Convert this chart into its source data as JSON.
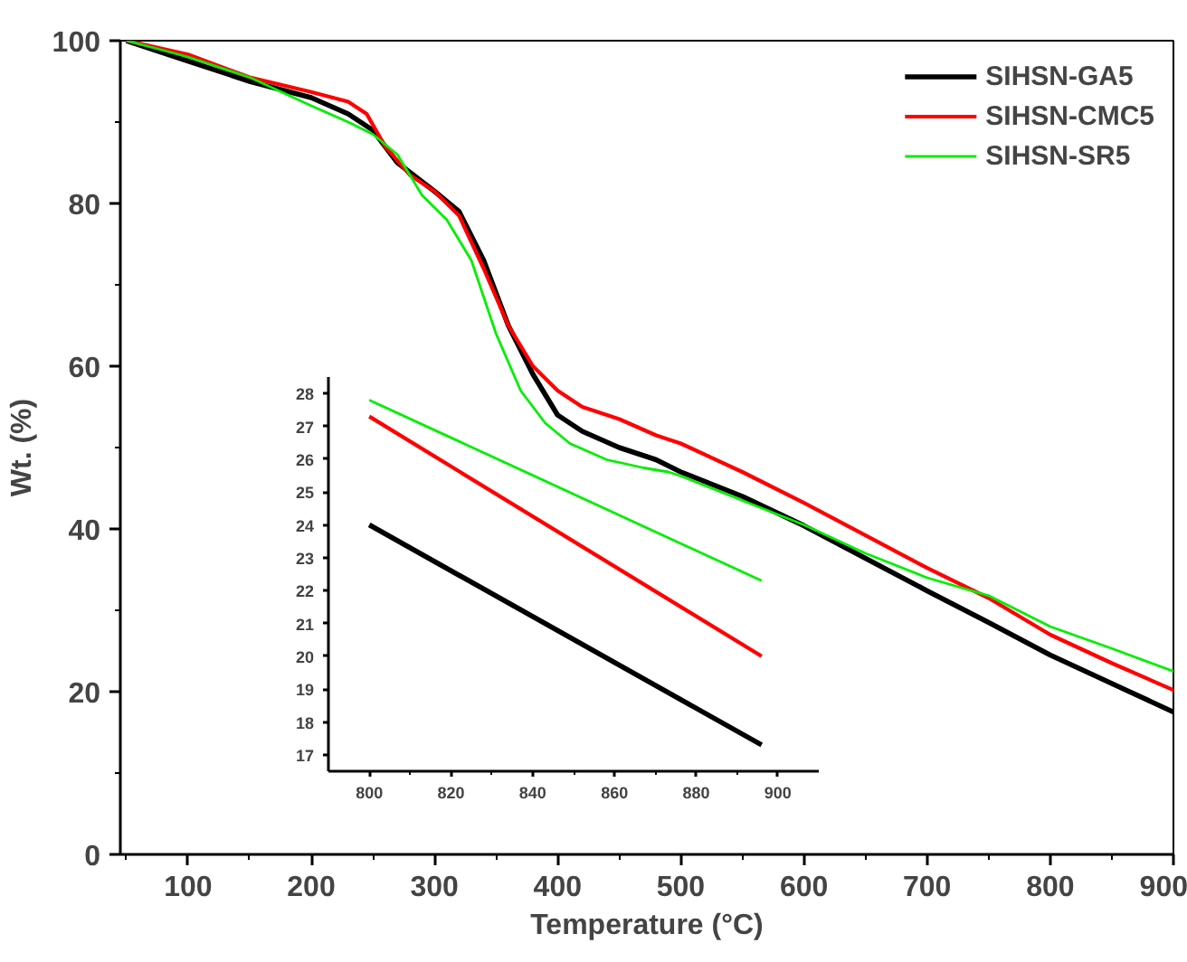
{
  "chart_data": [
    {
      "type": "line",
      "xlabel": "Temperature (°C)",
      "ylabel": "Wt. (%)",
      "legend": "top right",
      "grid": false,
      "line_style": "solid",
      "xlim": [
        45,
        900
      ],
      "ylim": [
        0,
        100
      ],
      "xticks": [
        {
          "value": 50,
          "label": null
        },
        100,
        {
          "value": 150,
          "label": null
        },
        200,
        {
          "value": 250,
          "label": null
        },
        300,
        {
          "value": 350,
          "label": null
        },
        400,
        {
          "value": 450,
          "label": null
        },
        500,
        {
          "value": 550,
          "label": null
        },
        600,
        {
          "value": 650,
          "label": null
        },
        700,
        {
          "value": 750,
          "label": null
        },
        800,
        {
          "value": 850,
          "label": null
        },
        900
      ],
      "yticks": [
        0,
        {
          "value": 10,
          "label": null
        },
        20,
        {
          "value": 30,
          "label": null
        },
        40,
        {
          "value": 50,
          "label": null
        },
        60,
        {
          "value": 70,
          "label": null
        },
        80,
        {
          "value": 90,
          "label": null
        },
        100
      ],
      "series": [
        {
          "name": "SIHSN-GA5",
          "color": "#000000",
          "x": [
            50,
            100,
            150,
            200,
            230,
            250,
            270,
            300,
            320,
            340,
            360,
            380,
            400,
            420,
            450,
            480,
            500,
            550,
            600,
            650,
            700,
            750,
            800,
            850,
            900
          ],
          "values": [
            100,
            97.5,
            95,
            93,
            91,
            89,
            85,
            81.5,
            79,
            73,
            65,
            59,
            54,
            52,
            50,
            48.5,
            47,
            44,
            40.4,
            36.4,
            32.4,
            28.5,
            24.5,
            21,
            17.5
          ]
        },
        {
          "name": "SIHSN-CMC5",
          "color": "#ff0000",
          "x": [
            50,
            100,
            150,
            200,
            230,
            245,
            260,
            280,
            300,
            320,
            340,
            360,
            380,
            400,
            420,
            450,
            480,
            500,
            550,
            600,
            650,
            700,
            750,
            800,
            850,
            900
          ],
          "values": [
            100,
            98.3,
            95.5,
            93.7,
            92.5,
            91,
            87,
            83.5,
            81.5,
            78.5,
            72,
            65,
            60,
            57,
            55,
            53.5,
            51.5,
            50.5,
            47,
            43.2,
            39.2,
            35.2,
            31.5,
            27,
            23.5,
            20.2
          ]
        },
        {
          "name": "SIHSN-SR5",
          "color": "#00ee00",
          "x": [
            50,
            100,
            150,
            200,
            230,
            250,
            270,
            290,
            310,
            330,
            350,
            370,
            390,
            410,
            440,
            470,
            490,
            500,
            550,
            600,
            650,
            700,
            750,
            800,
            850,
            900
          ],
          "values": [
            100,
            98,
            95.5,
            92,
            90,
            88.5,
            86,
            81,
            78,
            73,
            64,
            57,
            53,
            50.5,
            48.5,
            47.5,
            47,
            46.5,
            43.5,
            40.5,
            37,
            34,
            31.8,
            28,
            25.3,
            22.5
          ]
        }
      ]
    },
    {
      "type": "line",
      "grid": false,
      "line_style": "solid",
      "xlim": [
        790,
        910
      ],
      "ylim": [
        16.5,
        28.5
      ],
      "xticks": [
        800,
        {
          "value": 810,
          "label": null
        },
        820,
        {
          "value": 830,
          "label": null
        },
        840,
        {
          "value": 850,
          "label": null
        },
        860,
        {
          "value": 870,
          "label": null
        },
        880,
        {
          "value": 890,
          "label": null
        },
        900
      ],
      "yticks": [
        17,
        18,
        19,
        20,
        21,
        22,
        23,
        24,
        25,
        26,
        27,
        28
      ],
      "series": [
        {
          "color": "#000000",
          "x": [
            800,
            896
          ],
          "values": [
            24,
            17.3
          ]
        },
        {
          "color": "#ff0000",
          "x": [
            800,
            896
          ],
          "values": [
            27.3,
            20
          ]
        },
        {
          "color": "#00ee00",
          "x": [
            800,
            896
          ],
          "values": [
            27.8,
            22.3
          ]
        }
      ]
    }
  ]
}
